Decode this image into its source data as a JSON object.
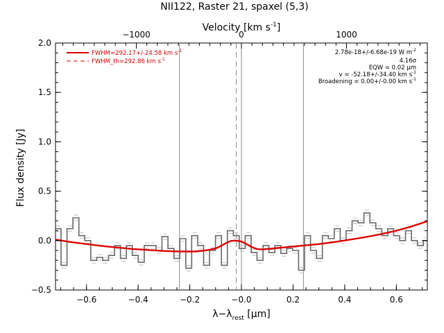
{
  "chart_data": {
    "type": "line",
    "title": "NII122, Raster 21, spaxel (5,3)",
    "top_axis": {
      "label_main": "Velocity [km s",
      "label_sup": "-1",
      "label_end": "]",
      "ticks": [
        -1000,
        0,
        1000
      ],
      "tick_labels": [
        "−1000",
        "0",
        "1000"
      ],
      "lambda_per_kms": 0.000407
    },
    "xlabel": {
      "main": "λ−λ",
      "sub": "rest",
      "end": " [μm]"
    },
    "ylabel": "Flux density [Jy]",
    "xlim": [
      -0.72,
      0.72
    ],
    "ylim": [
      -0.5,
      2.0
    ],
    "x_ticks": [
      -0.6,
      -0.4,
      -0.2,
      0.0,
      0.2,
      0.4,
      0.6
    ],
    "x_tick_labels": [
      "−0.6",
      "−0.4",
      "−0.2",
      "−0.0",
      "0.2",
      "0.4",
      "0.6"
    ],
    "y_ticks": [
      -0.5,
      0.0,
      0.5,
      1.0,
      1.5,
      2.0
    ],
    "y_tick_labels": [
      "−0.5",
      "0.0",
      "0.5",
      "1.0",
      "1.5",
      "2.0"
    ],
    "vertical_lines": [
      -0.24,
      0.0,
      0.24
    ],
    "dashed_line_x": -0.02,
    "annotations": [
      {
        "text": "2.78e-18+/-6.68e-19 W m",
        "sup": "-2"
      },
      {
        "text": "4.16σ",
        "sup": ""
      },
      {
        "text": "EQW = 0.02 μm",
        "sup": ""
      },
      {
        "text": "v = -52.18+/-34.40 km s",
        "sup": "-1"
      },
      {
        "text": "Broadening = 0.00+/-0.00 km s",
        "sup": "-1"
      }
    ],
    "legend": [
      {
        "text": "FWHM=292.17+/-24.58 km s",
        "sup": "-1",
        "style": "solid",
        "color": "#dd0000"
      },
      {
        "text": "FWHM_th=292.86 km s",
        "sup": "-1",
        "style": "dashed",
        "color": "#dd0000"
      }
    ],
    "legend_position": "top-left",
    "series": [
      {
        "style": "step",
        "color": "#666666",
        "x": [
          -0.71,
          -0.687,
          -0.664,
          -0.641,
          -0.618,
          -0.595,
          -0.572,
          -0.549,
          -0.526,
          -0.503,
          -0.48,
          -0.457,
          -0.434,
          -0.411,
          -0.388,
          -0.365,
          -0.342,
          -0.319,
          -0.296,
          -0.273,
          -0.25,
          -0.227,
          -0.204,
          -0.181,
          -0.158,
          -0.135,
          -0.112,
          -0.089,
          -0.066,
          -0.043,
          -0.02,
          0.003,
          0.026,
          0.049,
          0.072,
          0.095,
          0.118,
          0.141,
          0.164,
          0.187,
          0.21,
          0.233,
          0.256,
          0.279,
          0.302,
          0.325,
          0.348,
          0.371,
          0.394,
          0.417,
          0.44,
          0.463,
          0.486,
          0.509,
          0.532,
          0.555,
          0.578,
          0.601,
          0.624,
          0.647,
          0.67,
          0.693,
          0.716
        ],
        "y": [
          0.12,
          -0.25,
          0.12,
          0.23,
          0.05,
          0.0,
          -0.2,
          -0.17,
          -0.2,
          -0.15,
          -0.05,
          -0.18,
          -0.05,
          -0.15,
          -0.22,
          -0.05,
          -0.05,
          -0.1,
          0.04,
          -0.08,
          -0.18,
          0.02,
          -0.28,
          0.05,
          -0.05,
          -0.25,
          -0.1,
          0.05,
          -0.25,
          0.1,
          0.05,
          -0.08,
          0.05,
          -0.12,
          -0.2,
          -0.05,
          -0.12,
          -0.05,
          -0.13,
          -0.08,
          -0.1,
          -0.3,
          0.05,
          -0.1,
          -0.18,
          0.05,
          0.02,
          0.12,
          0.0,
          0.1,
          0.2,
          0.18,
          0.28,
          0.18,
          0.12,
          0.05,
          0.12,
          0.05,
          0.0,
          0.1,
          0.0,
          -0.05,
          0.0
        ]
      },
      {
        "style": "line",
        "color": "#dd0000",
        "x": [
          -0.72,
          -0.66,
          -0.6,
          -0.54,
          -0.48,
          -0.42,
          -0.36,
          -0.3,
          -0.24,
          -0.18,
          -0.14,
          -0.1,
          -0.08,
          -0.06,
          -0.04,
          -0.02,
          0.0,
          0.02,
          0.04,
          0.06,
          0.08,
          0.1,
          0.14,
          0.18,
          0.24,
          0.3,
          0.36,
          0.42,
          0.48,
          0.54,
          0.6,
          0.66,
          0.72
        ],
        "y": [
          0.01,
          -0.015,
          -0.035,
          -0.055,
          -0.07,
          -0.085,
          -0.095,
          -0.105,
          -0.11,
          -0.11,
          -0.1,
          -0.08,
          -0.055,
          -0.025,
          -0.003,
          0.0,
          -0.01,
          -0.035,
          -0.065,
          -0.085,
          -0.09,
          -0.085,
          -0.075,
          -0.065,
          -0.05,
          -0.035,
          -0.015,
          0.01,
          0.035,
          0.065,
          0.1,
          0.145,
          0.195
        ]
      }
    ]
  }
}
